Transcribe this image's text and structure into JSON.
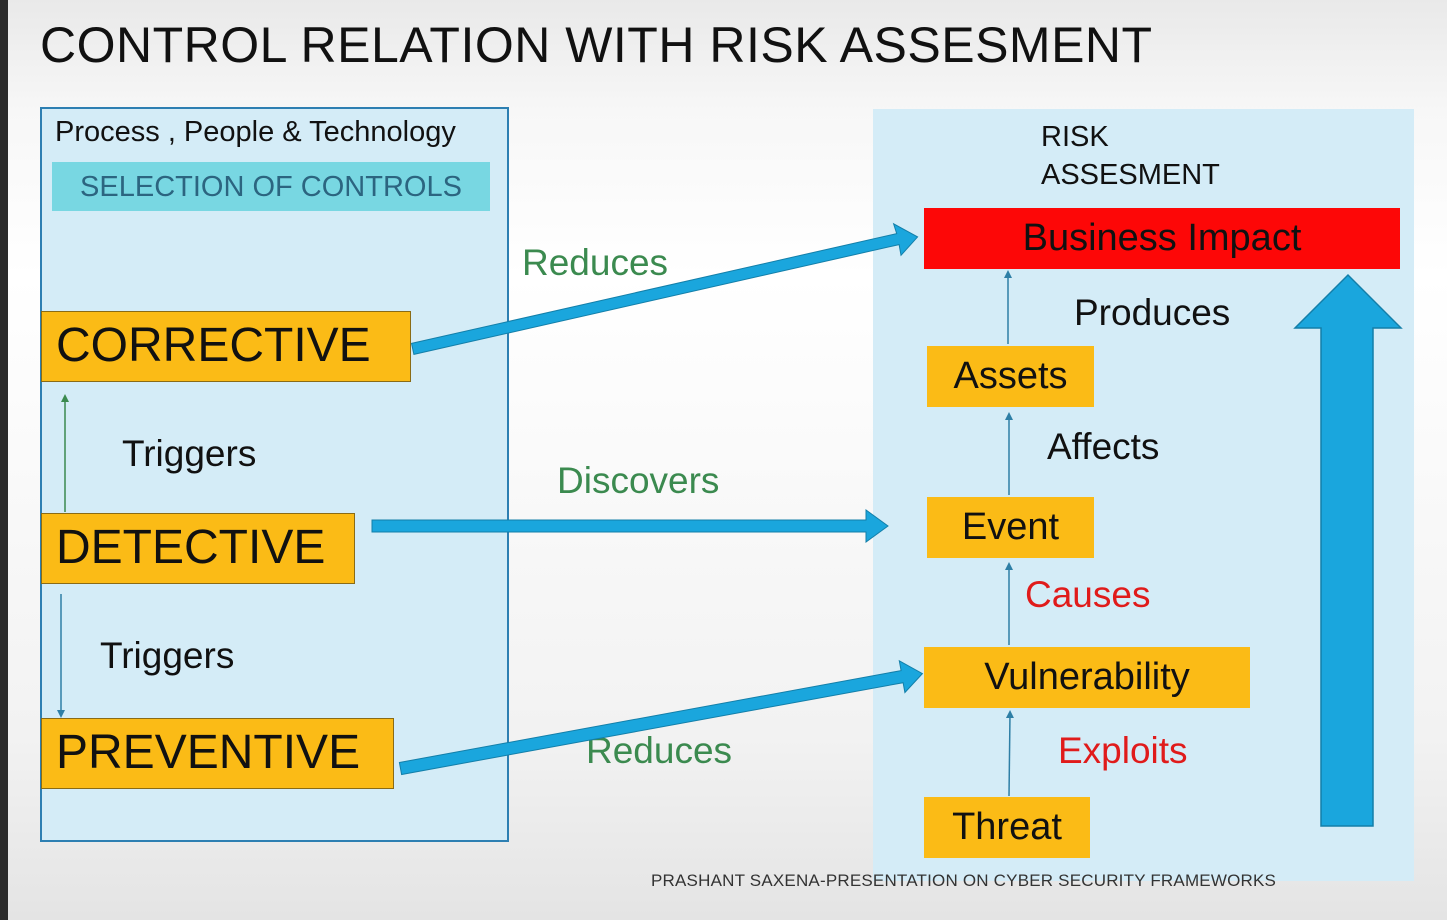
{
  "title": "CONTROL RELATION WITH RISK ASSESMENT",
  "left_panel": {
    "heading": "Process , People & Technology",
    "subheading": "SELECTION OF CONTROLS",
    "controls": {
      "corrective": "CORRECTIVE",
      "detective": "DETECTIVE",
      "preventive": "PREVENTIVE"
    },
    "triggers_upper": "Triggers",
    "triggers_lower": "Triggers"
  },
  "relations": {
    "reduces_top": "Reduces",
    "discovers": "Discovers",
    "reduces_bottom": "Reduces"
  },
  "right_panel": {
    "heading": "RISK\nASSESMENT",
    "business_impact": "Business Impact",
    "assets": "Assets",
    "event": "Event",
    "vulnerability": "Vulnerability",
    "threat": "Threat",
    "produces": "Produces",
    "affects": "Affects",
    "causes": "Causes",
    "exploits": "Exploits"
  },
  "footer": "PRASHANT SAXENA-PRESENTATION  ON CYBER SECURITY FRAMEWORKS",
  "colors": {
    "panel_fill": "#d4ecf7",
    "control_box": "#fbbb16",
    "business_impact": "#fd0707",
    "arrow_blue": "#1aa6dd",
    "relation_green": "#3b8a4f",
    "relation_red": "#e01b1b"
  }
}
